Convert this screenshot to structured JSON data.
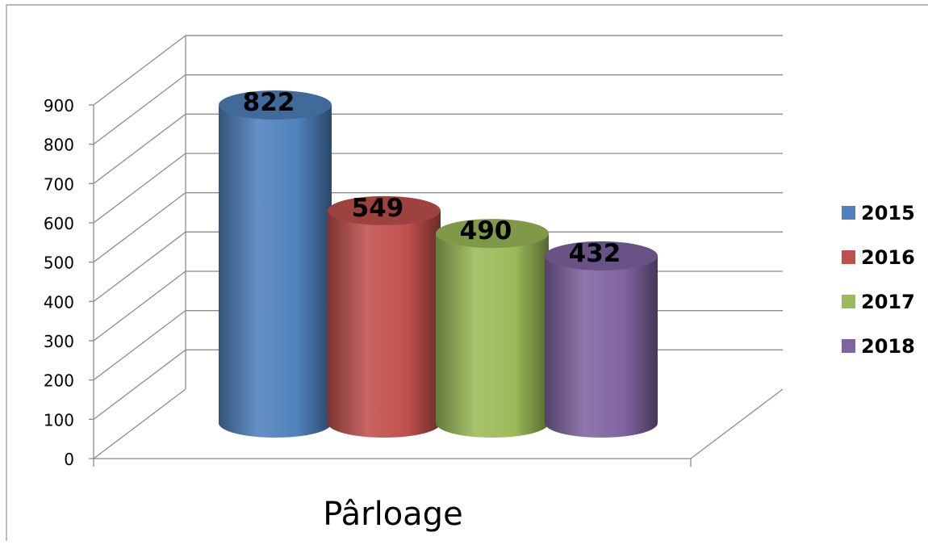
{
  "chart_data": {
    "type": "bar",
    "categories": [
      "Pârloage"
    ],
    "series": [
      {
        "name": "2015",
        "values": [
          822
        ],
        "color": "#4F81BD"
      },
      {
        "name": "2016",
        "values": [
          549
        ],
        "color": "#C0504D"
      },
      {
        "name": "2017",
        "values": [
          490
        ],
        "color": "#9BBB59"
      },
      {
        "name": "2018",
        "values": [
          432
        ],
        "color": "#8064A2"
      }
    ],
    "yticks": [
      "0",
      "100",
      "200",
      "300",
      "400",
      "500",
      "600",
      "700",
      "800",
      "900"
    ],
    "ylim": [
      0,
      900
    ],
    "grid": true,
    "legend": "right",
    "data_labels": [
      "822",
      "549",
      "490",
      "432"
    ],
    "bar_shape": "cylinder-3d"
  }
}
